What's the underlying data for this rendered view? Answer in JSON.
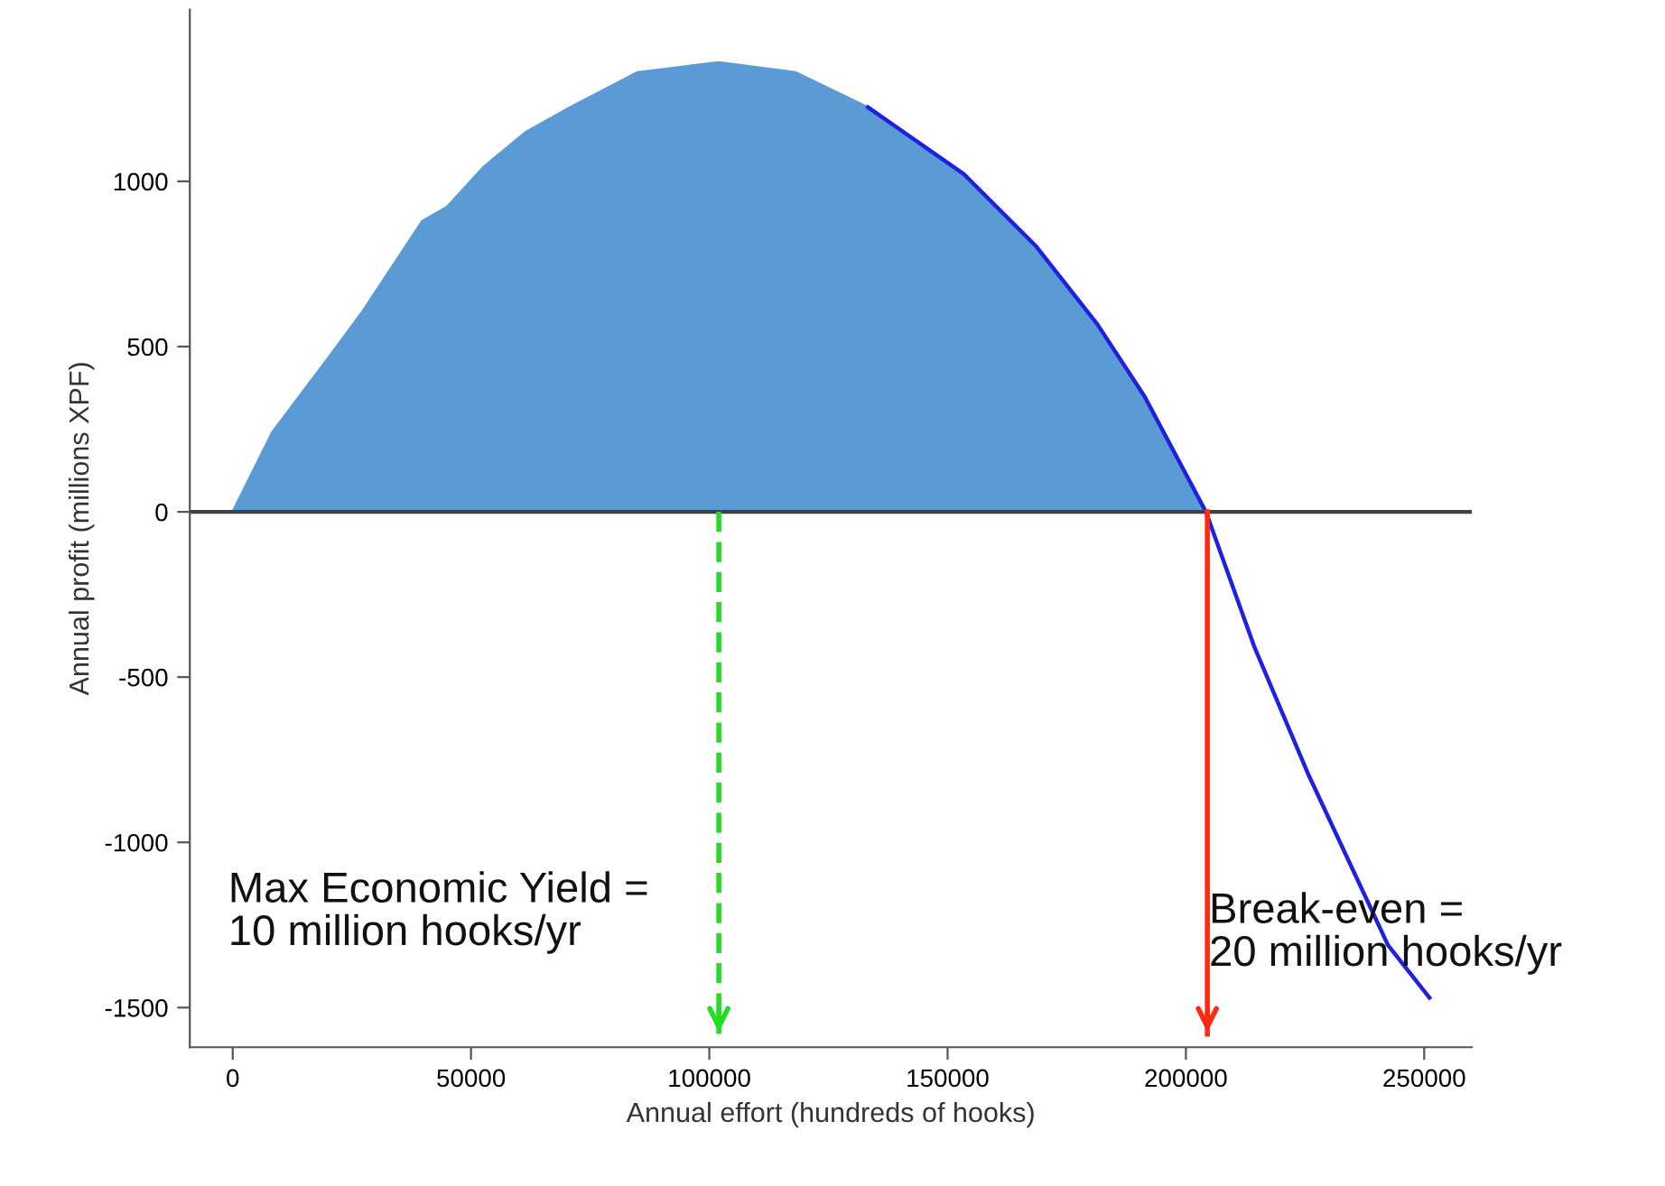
{
  "chart_data": {
    "type": "line",
    "xlabel": "Annual effort (hundreds of hooks)",
    "ylabel": "Annual profit (millions XPF)",
    "xlim": [
      -9000,
      260000
    ],
    "xticks": [
      0,
      50000,
      100000,
      150000,
      200000,
      250000
    ],
    "ylim": [
      -1620,
      1520
    ],
    "yticks": [
      -1500,
      -1000,
      -500,
      0,
      500,
      1000
    ],
    "grid": false,
    "legend": false,
    "series": [
      {
        "type": "area",
        "color": "#5b9bd5",
        "x": [
          0,
          8300,
          19700,
          27300,
          39800,
          45000,
          52700,
          61400,
          70800,
          85000,
          102000,
          118000,
          133300,
          153400,
          168600,
          181400,
          191300,
          204200
        ],
        "values": [
          0,
          240,
          459,
          607,
          880,
          923,
          1044,
          1148,
          1224,
          1330,
          1360,
          1330,
          1224,
          1022,
          803,
          568,
          350,
          0
        ]
      },
      {
        "color": "#2020e0",
        "x": [
          133300,
          153400,
          168600,
          181400,
          191300,
          204200,
          214400,
          225800,
          242400,
          251100
        ],
        "values": [
          1224,
          1022,
          803,
          568,
          350,
          0,
          -410,
          -798,
          -1311,
          -1470
        ]
      }
    ],
    "ref_lines": [
      {
        "axis": "y",
        "value": 0,
        "color": "#404040",
        "line_style": "solid"
      },
      {
        "axis": "x",
        "value": 102000,
        "color": "#22dd22",
        "line_style": "dashed"
      },
      {
        "axis": "x",
        "value": 204500,
        "color": "#ff2a10",
        "line_style": "solid"
      }
    ],
    "annotations": [
      "Max Economic Yield =\n10 million hooks/yr",
      "Break-even =\n20 million hooks/yr"
    ]
  }
}
